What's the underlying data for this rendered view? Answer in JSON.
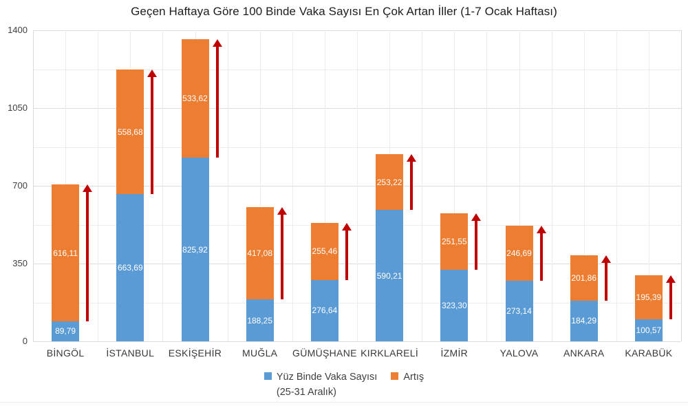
{
  "title": "Geçen Haftaya Göre 100 Binde Vaka Sayısı En Çok Artan İller (1-7 Ocak Haftası)",
  "legend": {
    "series1_line1": "Yüz Binde Vaka Sayısı",
    "series1_line2": "(25-31 Aralık)",
    "series2": "Artış"
  },
  "chart_data": {
    "type": "bar",
    "stacked": true,
    "title": "Geçen Haftaya Göre 100 Binde Vaka Sayısı En Çok Artan İller (1-7 Ocak Haftası)",
    "categories": [
      "BİNGÖL",
      "İSTANBUL",
      "ESKİŞEHİR",
      "MUĞLA",
      "GÜMÜŞHANE",
      "KIRKLARELİ",
      "İZMİR",
      "YALOVA",
      "ANKARA",
      "KARABÜK"
    ],
    "series": [
      {
        "name": "Yüz Binde Vaka Sayısı (25-31 Aralık)",
        "color": "#5B9BD5",
        "values": [
          89.79,
          663.69,
          825.92,
          188.25,
          276.64,
          590.21,
          323.3,
          273.14,
          184.29,
          100.57
        ],
        "labels": [
          "89,79",
          "663,69",
          "825,92",
          "188,25",
          "276,64",
          "590,21",
          "323,30",
          "273,14",
          "184,29",
          "100,57"
        ]
      },
      {
        "name": "Artış",
        "color": "#ED7D31",
        "values": [
          616.11,
          558.68,
          533.62,
          417.08,
          255.46,
          253.22,
          251.55,
          246.69,
          201.86,
          195.39
        ],
        "labels": [
          "616,11",
          "558,68",
          "533,62",
          "417,08",
          "255,46",
          "253,22",
          "251,55",
          "246,69",
          "201,86",
          "195,39"
        ]
      }
    ],
    "yticks": [
      0,
      350,
      700,
      1050,
      1400
    ],
    "ylim": [
      0,
      1400
    ],
    "grid": {
      "horizontal_interval": 175,
      "vertical_per_half_category": true
    },
    "legend_position": "bottom",
    "annotations": {
      "type": "increase-arrow",
      "description": "Dark red upward arrow beside each bar spanning the Artış (increase) segment",
      "color": "#C00000"
    }
  }
}
